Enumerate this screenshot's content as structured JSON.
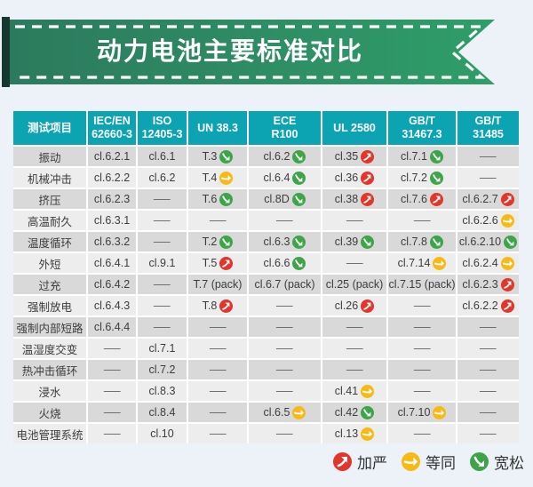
{
  "banner": {
    "title": "动力电池主要标准对比"
  },
  "colors": {
    "page_bg": "#edf2f8",
    "header_bg": "#0ca3b2",
    "row_odd": "#d9d9d9",
    "row_even": "#ededed",
    "table_gap": "#ffffff",
    "ribbon_from": "#2c7a5e",
    "ribbon_to": "#2f9e69",
    "ribbon_fold": "#16382f",
    "text_dark": "#3c3c3c",
    "dash": "#606060"
  },
  "marks": {
    "strict": {
      "color": "#e2352b",
      "direction": "ne",
      "meaning": "加严"
    },
    "equal": {
      "color": "#f7b916",
      "direction": "e",
      "meaning": "等同"
    },
    "loose": {
      "color": "#3ea449",
      "direction": "se",
      "meaning": "宽松"
    }
  },
  "chart_data": {
    "type": "table",
    "title": "动力电池主要标准对比",
    "columns": [
      "测试项目",
      "IEC/EN\n62660-3",
      "ISO\n12405-3",
      "UN 38.3",
      "ECE\nR100",
      "UL 2580",
      "GB/T\n31467.3",
      "GB/T\n31485"
    ],
    "rows": [
      {
        "label": "振动",
        "cells": [
          {
            "t": "cl.6.2.1"
          },
          {
            "t": "cl.6.1"
          },
          {
            "t": "T.3",
            "m": "loose"
          },
          {
            "t": "cl.6.2",
            "m": "loose"
          },
          {
            "t": "cl.35",
            "m": "strict"
          },
          {
            "t": "cl.7.1",
            "m": "loose"
          },
          {
            "t": "—"
          }
        ]
      },
      {
        "label": "机械冲击",
        "cells": [
          {
            "t": "cl.6.2.2"
          },
          {
            "t": "cl.6.2"
          },
          {
            "t": "T.4",
            "m": "equal"
          },
          {
            "t": "cl.6.4",
            "m": "loose"
          },
          {
            "t": "cl.36",
            "m": "strict"
          },
          {
            "t": "cl.7.2",
            "m": "loose"
          },
          {
            "t": "—"
          }
        ]
      },
      {
        "label": "挤压",
        "cells": [
          {
            "t": "cl.6.2.3"
          },
          {
            "t": "—"
          },
          {
            "t": "T.6",
            "m": "loose"
          },
          {
            "t": "cl.8D",
            "m": "loose"
          },
          {
            "t": "cl.38",
            "m": "strict"
          },
          {
            "t": "cl.7.6",
            "m": "strict"
          },
          {
            "t": "cl.6.2.7",
            "m": "strict"
          }
        ]
      },
      {
        "label": "高温耐久",
        "cells": [
          {
            "t": "cl.6.3.1"
          },
          {
            "t": "—"
          },
          {
            "t": "—"
          },
          {
            "t": "—"
          },
          {
            "t": "—"
          },
          {
            "t": "—"
          },
          {
            "t": "cl.6.2.6",
            "m": "equal"
          }
        ]
      },
      {
        "label": "温度循环",
        "cells": [
          {
            "t": "cl.6.3.2"
          },
          {
            "t": "—"
          },
          {
            "t": "T.2",
            "m": "loose"
          },
          {
            "t": "cl.6.3",
            "m": "loose"
          },
          {
            "t": "cl.39",
            "m": "loose"
          },
          {
            "t": "cl.7.8",
            "m": "loose"
          },
          {
            "t": "cl.6.2.10",
            "m": "loose"
          }
        ]
      },
      {
        "label": "外短",
        "cells": [
          {
            "t": "cl.6.4.1"
          },
          {
            "t": "cl.9.1"
          },
          {
            "t": "T.5",
            "m": "strict"
          },
          {
            "t": "cl.6.6",
            "m": "loose"
          },
          {
            "t": "—"
          },
          {
            "t": "cl.7.14",
            "m": "equal"
          },
          {
            "t": "cl.6.2.4",
            "m": "equal"
          }
        ]
      },
      {
        "label": "过充",
        "cells": [
          {
            "t": "cl.6.4.2"
          },
          {
            "t": "—"
          },
          {
            "t": "T.7 (pack)"
          },
          {
            "t": "cl.6.7 (pack)"
          },
          {
            "t": "cl.25 (pack)"
          },
          {
            "t": "cl.7.15 (pack)"
          },
          {
            "t": "cl.6.2.3",
            "m": "strict"
          }
        ]
      },
      {
        "label": "强制放电",
        "cells": [
          {
            "t": "cl.6.4.3"
          },
          {
            "t": "—"
          },
          {
            "t": "T.8",
            "m": "strict"
          },
          {
            "t": "—"
          },
          {
            "t": "cl.26",
            "m": "strict"
          },
          {
            "t": "—"
          },
          {
            "t": "cl.6.2.2",
            "m": "strict"
          }
        ]
      },
      {
        "label": "强制内部短路",
        "cells": [
          {
            "t": "cl.6.4.4"
          },
          {
            "t": "—"
          },
          {
            "t": "—"
          },
          {
            "t": "—"
          },
          {
            "t": "—"
          },
          {
            "t": "—"
          },
          {
            "t": "—"
          }
        ]
      },
      {
        "label": "温湿度交变",
        "cells": [
          {
            "t": "—"
          },
          {
            "t": "cl.7.1"
          },
          {
            "t": "—"
          },
          {
            "t": "—"
          },
          {
            "t": "—"
          },
          {
            "t": "—"
          },
          {
            "t": "—"
          }
        ]
      },
      {
        "label": "热冲击循环",
        "cells": [
          {
            "t": "—"
          },
          {
            "t": "cl.7.2"
          },
          {
            "t": "—"
          },
          {
            "t": "—"
          },
          {
            "t": "—"
          },
          {
            "t": "—"
          },
          {
            "t": "—"
          }
        ]
      },
      {
        "label": "浸水",
        "cells": [
          {
            "t": "—"
          },
          {
            "t": "cl.8.3"
          },
          {
            "t": "—"
          },
          {
            "t": "—"
          },
          {
            "t": "cl.41",
            "m": "equal"
          },
          {
            "t": "—"
          },
          {
            "t": "—"
          }
        ]
      },
      {
        "label": "火烧",
        "cells": [
          {
            "t": "—"
          },
          {
            "t": "cl.8.4"
          },
          {
            "t": "—"
          },
          {
            "t": "cl.6.5",
            "m": "equal"
          },
          {
            "t": "cl.42",
            "m": "loose"
          },
          {
            "t": "cl.7.10",
            "m": "equal"
          },
          {
            "t": "—"
          }
        ]
      },
      {
        "label": "电池管理系统",
        "cells": [
          {
            "t": "—"
          },
          {
            "t": "cl.10"
          },
          {
            "t": "—"
          },
          {
            "t": "—"
          },
          {
            "t": "cl.13",
            "m": "equal"
          },
          {
            "t": "—"
          },
          {
            "t": "—"
          }
        ]
      }
    ],
    "legend": [
      {
        "key": "strict",
        "label": "加严"
      },
      {
        "key": "equal",
        "label": "等同"
      },
      {
        "key": "loose",
        "label": "宽松"
      }
    ]
  }
}
